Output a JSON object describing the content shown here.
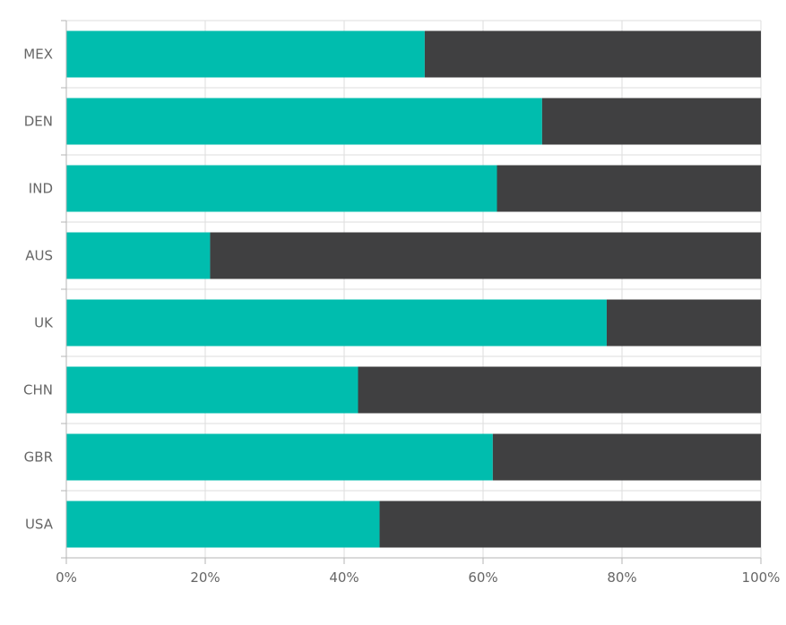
{
  "chart_data": {
    "type": "bar",
    "orientation": "horizontal",
    "stacked": "percent",
    "categories": [
      "MEX",
      "DEN",
      "IND",
      "AUS",
      "UK",
      "CHN",
      "GBR",
      "USA"
    ],
    "series": [
      {
        "values": [
          51.6,
          68.5,
          62.0,
          20.7,
          77.8,
          42.0,
          61.4,
          45.1
        ],
        "color": "#00bdae"
      },
      {
        "values": [
          48.4,
          31.5,
          38.0,
          79.3,
          22.2,
          58.0,
          38.6,
          54.9
        ],
        "color": "#404041"
      }
    ],
    "x_ticks": [
      "0%",
      "20%",
      "40%",
      "60%",
      "80%",
      "100%"
    ],
    "xlim": [
      0,
      100
    ],
    "grid": true,
    "legend": "none",
    "title": "",
    "xlabel": "",
    "ylabel": ""
  }
}
